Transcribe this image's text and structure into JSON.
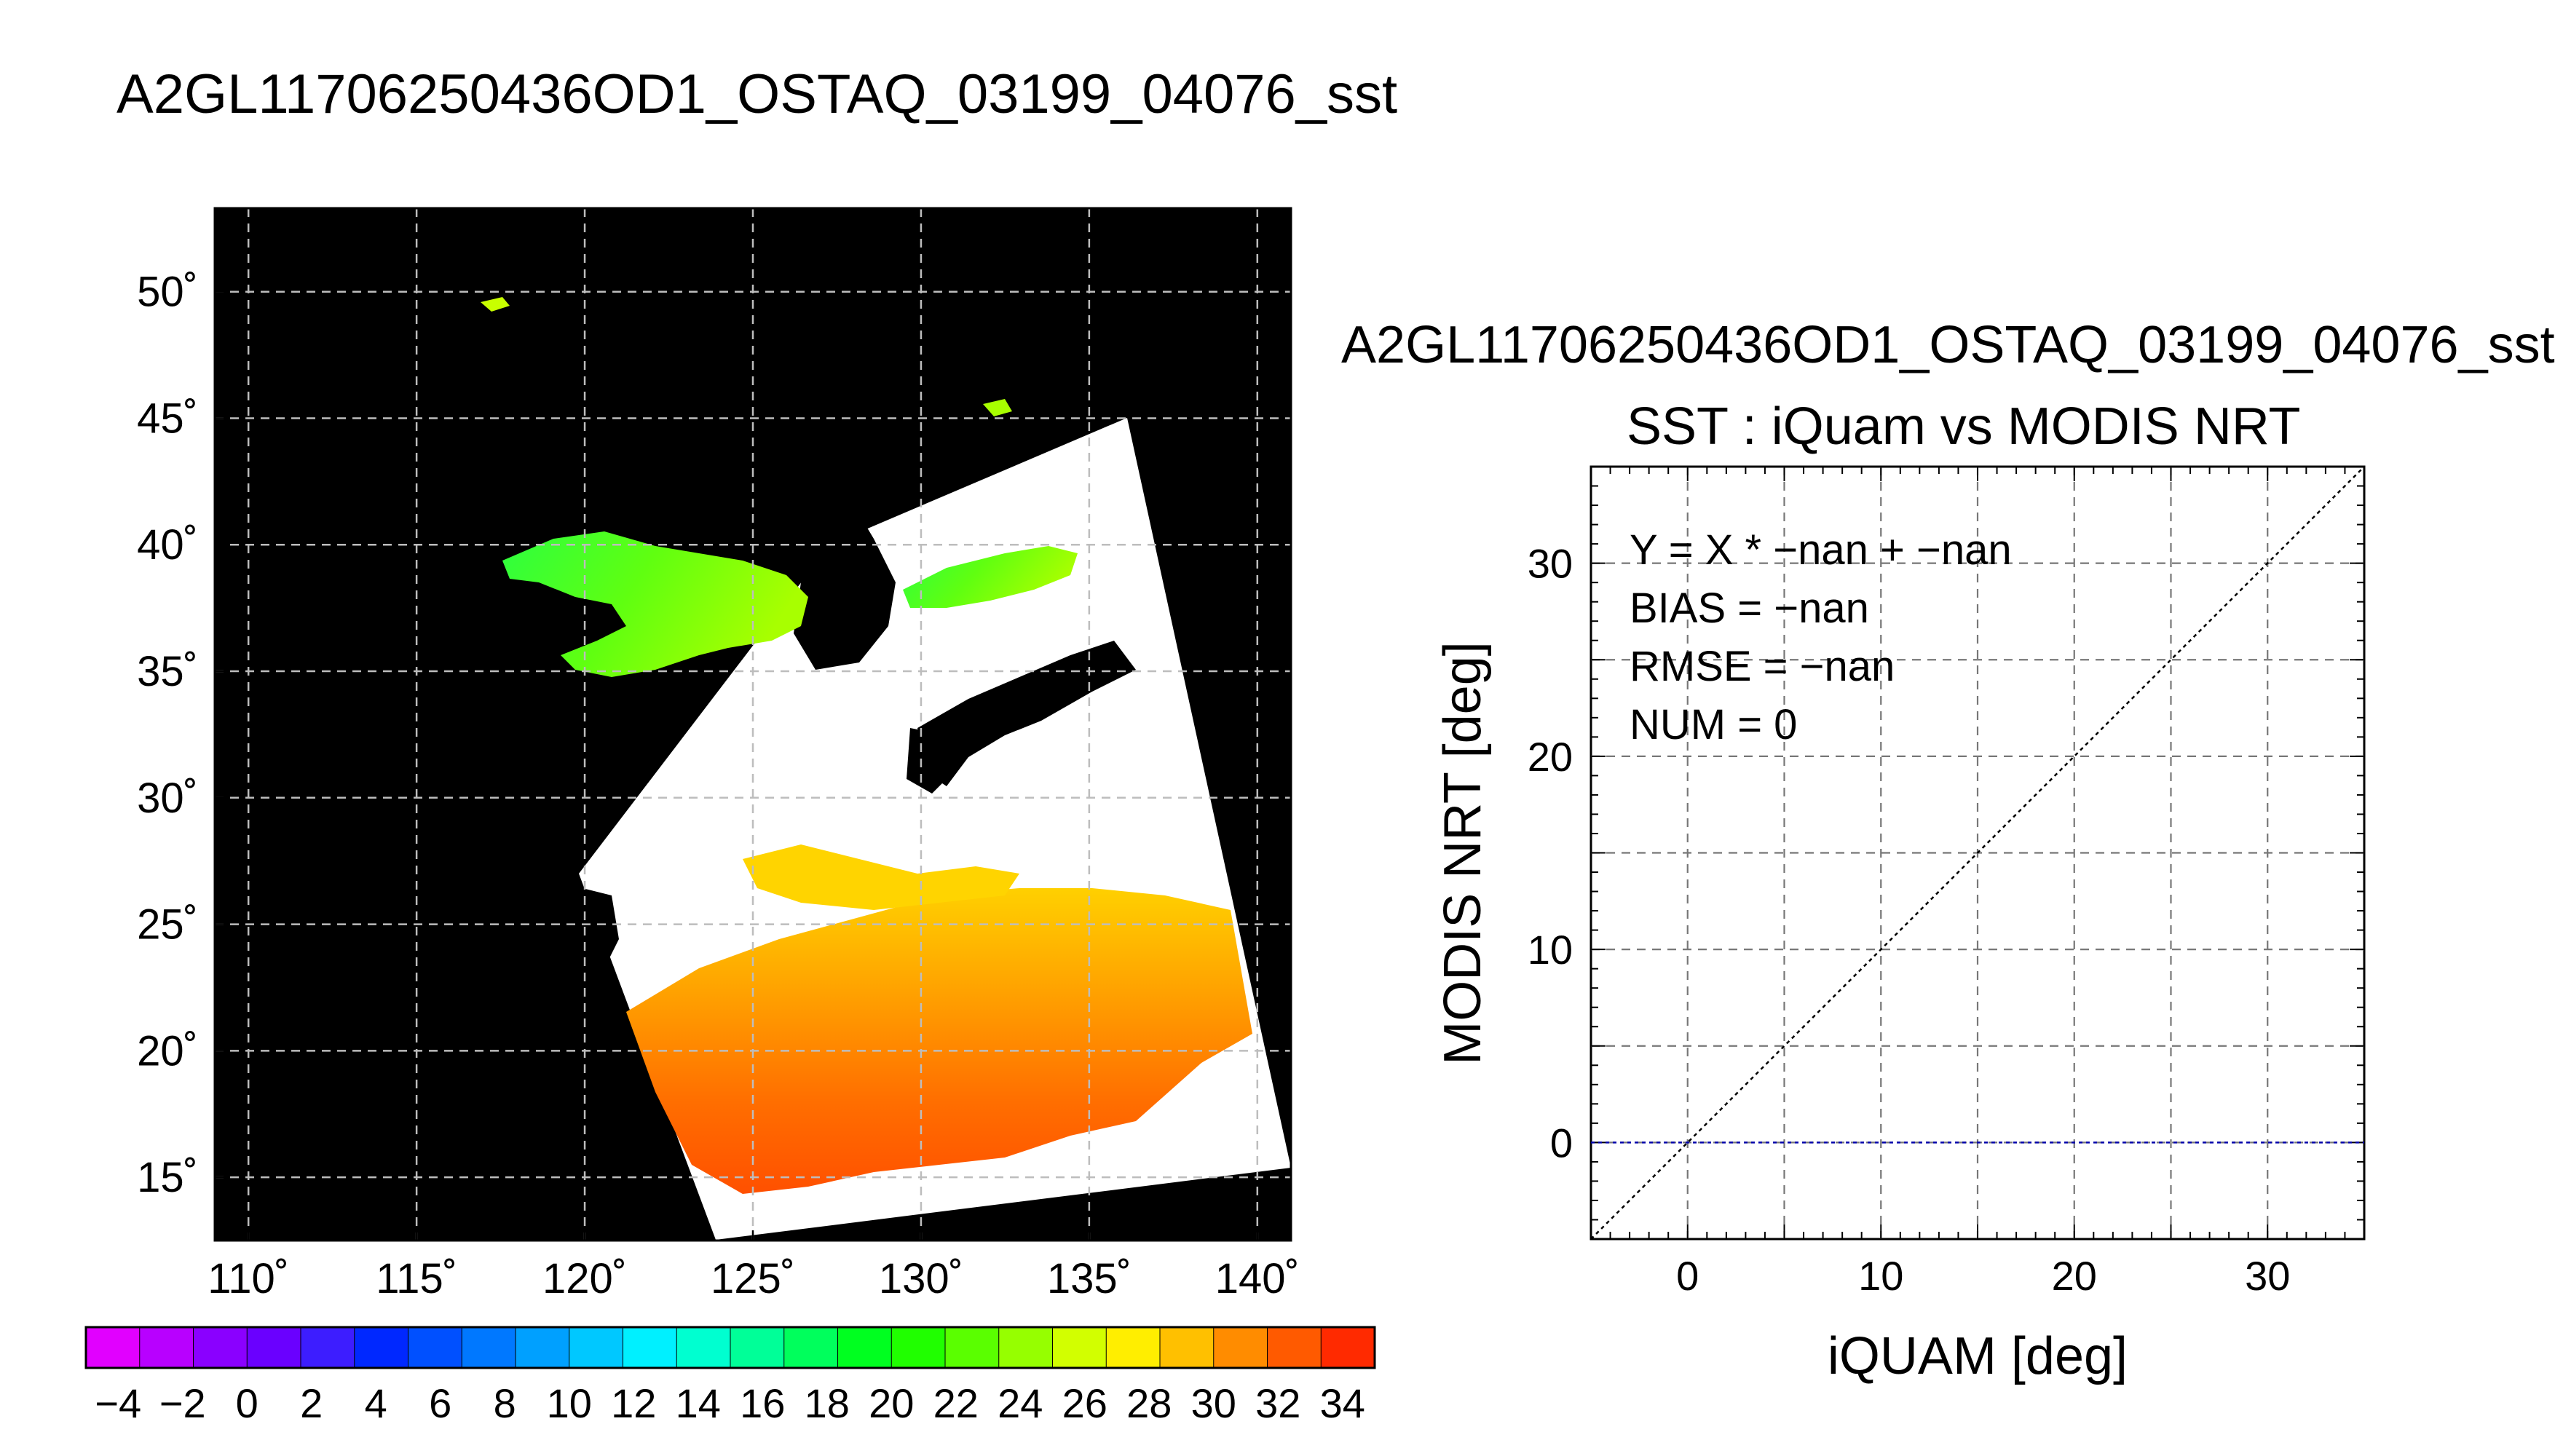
{
  "main_title": "A2GL11706250436OD1_OSTAQ_03199_04076_sst",
  "colors": {
    "background": "#ffffff",
    "map_background": "#000000",
    "grid": "#bdbdbd",
    "swath": "#ffffff",
    "diagonal": "#000000",
    "zero_line": "#0000aa"
  },
  "chart_data": [
    {
      "type": "heatmap",
      "name": "sst-map",
      "x_tick_labels": [
        "110˚",
        "115˚",
        "120˚",
        "125˚",
        "130˚",
        "135˚",
        "140˚"
      ],
      "y_tick_labels": [
        "50˚",
        "45˚",
        "40˚",
        "35˚",
        "30˚",
        "25˚",
        "20˚",
        "15˚"
      ],
      "xlim": [
        109,
        141
      ],
      "ylim": [
        12.5,
        53.3
      ],
      "grid": true,
      "colorbar": {
        "tick_labels": [
          "−4",
          "−2",
          "0",
          "2",
          "4",
          "6",
          "8",
          "10",
          "12",
          "14",
          "16",
          "18",
          "20",
          "22",
          "24",
          "26",
          "28",
          "30",
          "32",
          "34"
        ],
        "range": [
          -5,
          35
        ],
        "colors": [
          "#e100ff",
          "#b800ff",
          "#8a00ff",
          "#6a00ff",
          "#3d1dff",
          "#0028ff",
          "#0050ff",
          "#0078ff",
          "#00a0ff",
          "#00c8ff",
          "#00f0ff",
          "#00ffd0",
          "#00ff98",
          "#00ff5c",
          "#00ff20",
          "#20ff00",
          "#5aff00",
          "#96ff00",
          "#d2ff00",
          "#ffee00",
          "#ffc000",
          "#ff8c00",
          "#ff5a00",
          "#ff2a00"
        ]
      }
    },
    {
      "type": "scatter",
      "name": "sst-scatter",
      "title": "A2GL11706250436OD1_OSTAQ_03199_04076_sst",
      "subtitle": "SST : iQuam vs MODIS NRT",
      "xlabel": "iQUAM [deg]",
      "ylabel": "MODIS NRT [deg]",
      "xlim": [
        -5,
        35
      ],
      "ylim": [
        -5,
        35
      ],
      "x_ticks": [
        "0",
        "10",
        "20",
        "30"
      ],
      "y_ticks": [
        "0",
        "10",
        "20",
        "30"
      ],
      "grid": true,
      "annotations": [
        "Y = X * −nan + −nan",
        "BIAS = −nan",
        "RMSE = −nan",
        "NUM = 0"
      ],
      "lines": [
        {
          "kind": "one-to-one",
          "x": [
            -5,
            35
          ],
          "y": [
            -5,
            35
          ]
        },
        {
          "kind": "zero",
          "x": [
            -5,
            35
          ],
          "y": [
            0,
            0
          ]
        }
      ],
      "points": []
    }
  ]
}
